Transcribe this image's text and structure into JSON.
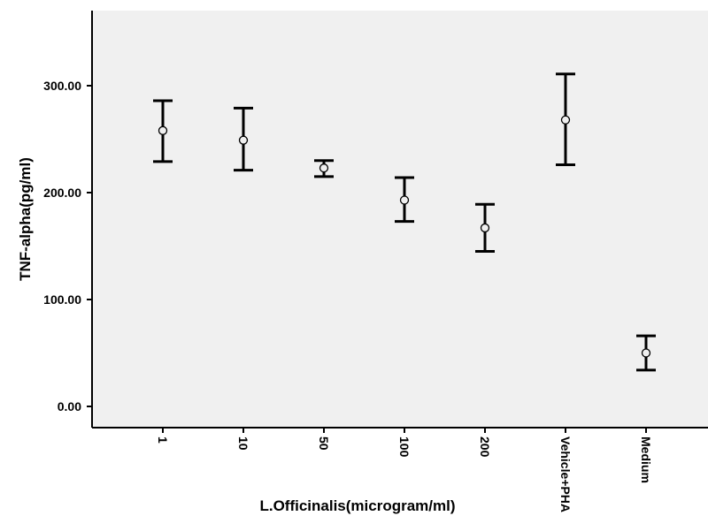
{
  "chart_data": {
    "type": "errorbar",
    "xlabel": "L.Officinalis(microgram/ml)",
    "ylabel": "TNF-alpha(pg/ml)",
    "ylim": [
      -20,
      365
    ],
    "yticks": [
      "0.00",
      "100.00",
      "200.00",
      "300.00"
    ],
    "grid": false,
    "categories": [
      "1",
      "10",
      "50",
      "100",
      "200",
      "Vehicle+PHA",
      "Medium"
    ],
    "means": [
      258,
      249,
      223,
      193,
      167,
      268,
      50
    ],
    "lower": [
      229,
      221,
      215,
      173,
      145,
      226,
      34
    ],
    "upper": [
      286,
      279,
      230,
      214,
      189,
      311,
      66
    ]
  },
  "colors": {
    "plot_background": "#f0f0f0",
    "axis": "#000000",
    "marks": "#000000"
  }
}
